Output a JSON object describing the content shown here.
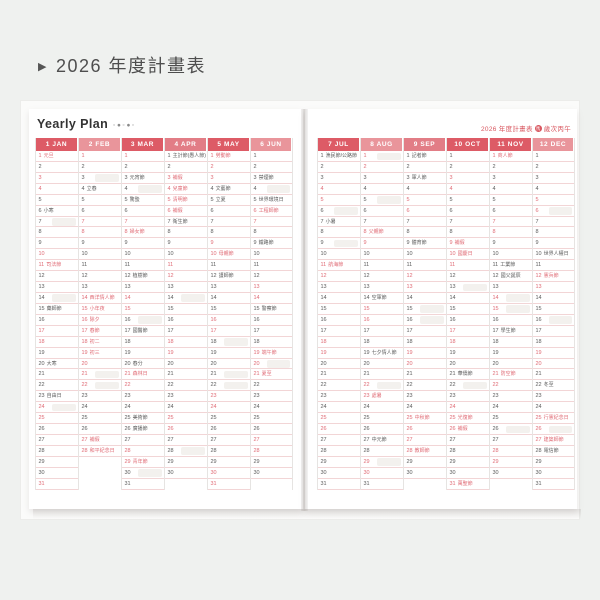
{
  "page": {
    "heading_arrow": "▶",
    "heading_text": "2026 年度計畫表"
  },
  "planner": {
    "left_title": "Yearly Plan",
    "left_title_dots": "◦●◦●◦",
    "right_caption_prefix": "2026 年度計畫表",
    "right_caption_zodiac": "馬",
    "right_caption_suffix": "歲次丙午",
    "colors": {
      "header_dark": "#dd5b66",
      "header_mid": "#e27d86",
      "header_light": "#e9959b",
      "red_text": "#d8555e",
      "red_day": "#e06c76",
      "weekday_text": "#5c5c5c",
      "row_line": "#f2d5d6",
      "column_line": "#e6e4e2"
    },
    "months": [
      {
        "label": "1 JAN",
        "tone": "dark",
        "days": 31,
        "red": [
          1,
          3,
          4,
          10,
          11,
          17,
          18,
          24,
          25,
          31
        ],
        "labels": {
          "1": "元旦",
          "6": "小寒",
          "11": "司法節",
          "15": "藥師節",
          "20": "大寒",
          "23": "自由日"
        },
        "hl": [
          7,
          14,
          24
        ]
      },
      {
        "label": "2 FEB",
        "tone": "light",
        "days": 28,
        "red": [
          1,
          7,
          8,
          14,
          15,
          16,
          17,
          18,
          19,
          20,
          21,
          22,
          27,
          28
        ],
        "labels": {
          "4": "立春",
          "14": "西洋情人節",
          "15": "小年夜",
          "16": "除夕",
          "17": "春節",
          "18": "初二",
          "19": "初三",
          "27": "補假",
          "28": "和平紀念日"
        },
        "hl": [
          3,
          21,
          22
        ]
      },
      {
        "label": "3 MAR",
        "tone": "dark",
        "days": 31,
        "red": [
          1,
          7,
          8,
          14,
          15,
          21,
          22,
          28,
          29
        ],
        "labels": {
          "3": "元宵節",
          "5": "驚蟄",
          "8": "婦女節",
          "12": "植樹節",
          "17": "國醫節",
          "20": "春分",
          "21": "森林日",
          "25": "美術節",
          "26": "廣播節",
          "29": "青年節"
        },
        "hl": [
          4,
          16,
          30
        ]
      },
      {
        "label": "4 APR",
        "tone": "mid",
        "days": 30,
        "red": [
          3,
          4,
          5,
          6,
          11,
          12,
          18,
          19,
          25,
          26
        ],
        "labels": {
          "1": "主計節(愚人節)",
          "3": "補假",
          "4": "兒童節",
          "5": "清明節",
          "6": "補假",
          "7": "衛生節"
        },
        "hl": [
          14,
          28
        ]
      },
      {
        "label": "5 MAY",
        "tone": "dark",
        "days": 31,
        "red": [
          1,
          2,
          3,
          9,
          10,
          16,
          17,
          23,
          24,
          30,
          31
        ],
        "labels": {
          "1": "勞動節",
          "4": "文藝節",
          "5": "立夏",
          "10": "母親節",
          "12": "護師節"
        },
        "hl": [
          18,
          21,
          22
        ]
      },
      {
        "label": "6 JUN",
        "tone": "light",
        "days": 30,
        "red": [
          6,
          7,
          13,
          14,
          19,
          20,
          21,
          27,
          28
        ],
        "labels": {
          "3": "禁煙節",
          "5": "世界環境日",
          "6": "工程師節",
          "9": "鐵路節",
          "15": "警察節",
          "19": "端午節",
          "21": "夏至"
        },
        "hl": [
          4,
          20
        ]
      },
      {
        "label": "7 JUL",
        "tone": "dark",
        "days": 31,
        "red": [
          4,
          5,
          11,
          12,
          18,
          19,
          25,
          26
        ],
        "labels": {
          "1": "漁民節/公路節",
          "7": "小暑",
          "11": "航海節"
        },
        "hl": [
          6,
          9
        ]
      },
      {
        "label": "8 AUG",
        "tone": "light",
        "days": 31,
        "red": [
          1,
          2,
          8,
          9,
          15,
          16,
          22,
          23,
          29,
          30
        ],
        "labels": {
          "8": "父親節",
          "14": "空軍節",
          "19": "七夕情人節",
          "23": "處暑",
          "27": "中元節"
        },
        "hl": [
          1,
          5,
          22,
          29
        ]
      },
      {
        "label": "9 SEP",
        "tone": "mid",
        "days": 30,
        "red": [
          5,
          6,
          12,
          13,
          19,
          20,
          25,
          26,
          27,
          28
        ],
        "labels": {
          "1": "記者節",
          "3": "軍人節",
          "9": "體育節",
          "25": "中秋節",
          "28": "教師節"
        },
        "hl": [
          15,
          16
        ]
      },
      {
        "label": "10 OCT",
        "tone": "dark",
        "days": 31,
        "red": [
          3,
          4,
          9,
          10,
          11,
          17,
          18,
          24,
          25,
          26,
          31
        ],
        "labels": {
          "9": "補假",
          "10": "國慶日",
          "21": "華僑節",
          "25": "光復節",
          "26": "補假",
          "31": "萬聖節"
        },
        "hl": [
          13,
          22
        ]
      },
      {
        "label": "11 NOV",
        "tone": "dark",
        "days": 30,
        "red": [
          1,
          7,
          8,
          14,
          15,
          21,
          22,
          28,
          29
        ],
        "labels": {
          "1": "商人節",
          "11": "工業節",
          "12": "國父誕辰",
          "17": "學生節",
          "21": "防空節"
        },
        "hl": [
          14,
          15,
          26
        ]
      },
      {
        "label": "12 DEC",
        "tone": "light",
        "days": 31,
        "red": [
          5,
          6,
          12,
          13,
          19,
          20,
          25,
          26,
          27
        ],
        "labels": {
          "10": "世界人權日",
          "12": "憲兵節",
          "22": "冬至",
          "25": "行憲紀念日",
          "27": "建築師節",
          "28": "電信節"
        },
        "hl": [
          6,
          16,
          26
        ]
      }
    ]
  }
}
